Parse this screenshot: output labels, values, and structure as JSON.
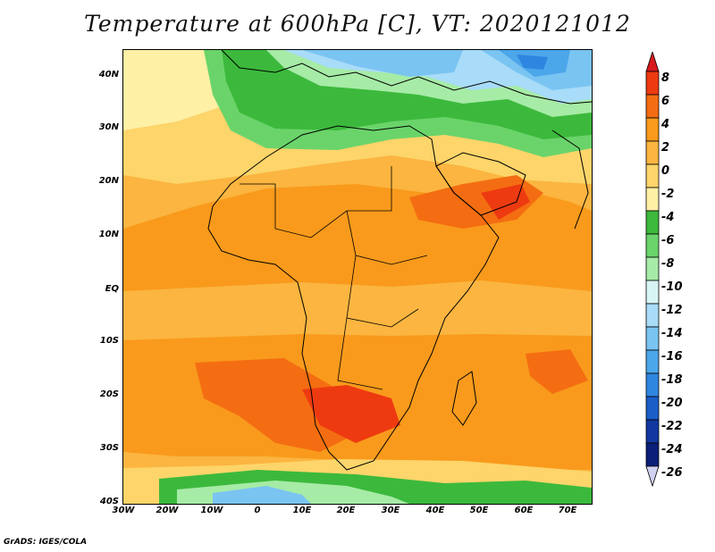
{
  "title": "Temperature at 600hPa [C], VT: 2020121012",
  "credit": "GrADS: IGES/COLA",
  "lat_labels": [
    "40N",
    "30N",
    "20N",
    "10N",
    "EQ",
    "10S",
    "20S",
    "30S",
    "40S"
  ],
  "lon_labels": [
    "30W",
    "20W",
    "10W",
    "0",
    "10E",
    "20E",
    "30E",
    "40E",
    "50E",
    "60E",
    "70E"
  ],
  "colorbar": {
    "labels": [
      "8",
      "6",
      "4",
      "2",
      "0",
      "-2",
      "-4",
      "-6",
      "-8",
      "-10",
      "-12",
      "-14",
      "-16",
      "-18",
      "-20",
      "-22",
      "-24",
      "-26"
    ],
    "colors": [
      "#d7191c",
      "#ee3a10",
      "#f46d12",
      "#f99a1c",
      "#fbb540",
      "#fdd56a",
      "#fef0a5",
      "#3cb93c",
      "#6ad46a",
      "#a6eba6",
      "#d8f5f5",
      "#a8dcf8",
      "#7ac4f2",
      "#4ca6ea",
      "#2f86e0",
      "#1a5ec8",
      "#1238a0",
      "#0a1f78",
      "#d0d0f0"
    ]
  }
}
